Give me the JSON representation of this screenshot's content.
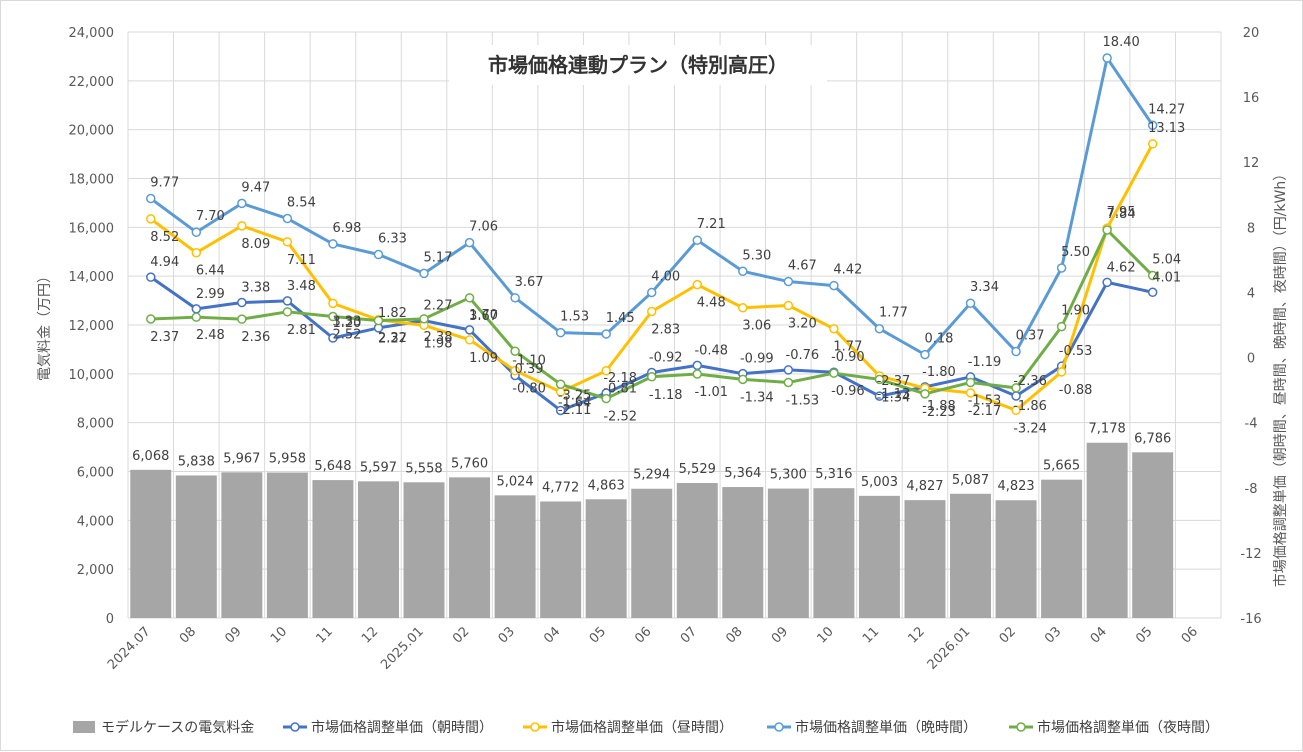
{
  "chart_data": {
    "type": "bar+line",
    "title": "市場価格連動プラン（特別高圧）",
    "y_left_label": "電気料金（万円）",
    "y_right_label": "市場価格調整単価（朝時間、昼時間、晩時間、夜時間）（円/kWh）",
    "ylim_left": [
      0,
      24000
    ],
    "ylim_right": [
      -16,
      20
    ],
    "y_left_ticks": [
      "0",
      "2,000",
      "4,000",
      "6,000",
      "8,000",
      "10,000",
      "12,000",
      "14,000",
      "16,000",
      "18,000",
      "20,000",
      "22,000",
      "24,000"
    ],
    "y_right_ticks": [
      "-16",
      "-12",
      "-8",
      "-4",
      "0",
      "4",
      "8",
      "12",
      "16",
      "20"
    ],
    "categories": [
      "2024.07",
      "08",
      "09",
      "10",
      "11",
      "12",
      "2025.01",
      "02",
      "03",
      "04",
      "05",
      "06",
      "07",
      "08",
      "09",
      "10",
      "11",
      "12",
      "2026.01",
      "02",
      "03",
      "04",
      "05",
      "06"
    ],
    "bars": {
      "name": "モデルケースの電気料金",
      "color": "#a6a6a6",
      "values": [
        6068,
        5838,
        5967,
        5958,
        5648,
        5597,
        5558,
        5760,
        5024,
        4772,
        4863,
        5294,
        5529,
        5364,
        5300,
        5316,
        5003,
        4827,
        5087,
        4823,
        5665,
        7178,
        6786,
        null
      ],
      "labels": [
        "6,068",
        "5,838",
        "5,967",
        "5,958",
        "5,648",
        "5,597",
        "5,558",
        "5,760",
        "5,024",
        "4,772",
        "4,863",
        "5,294",
        "5,529",
        "5,364",
        "5,300",
        "5,316",
        "5,003",
        "4,827",
        "5,087",
        "4,823",
        "5,665",
        "7,178",
        "6,786",
        ""
      ]
    },
    "series": [
      {
        "name": "市場価格調整単価（朝時間）",
        "color": "#4472c4",
        "values": [
          4.94,
          2.99,
          3.38,
          3.48,
          1.2,
          1.82,
          2.27,
          1.7,
          -1.1,
          -3.25,
          -2.18,
          -0.92,
          -0.48,
          -0.99,
          -0.76,
          -0.9,
          -2.37,
          -1.8,
          -1.19,
          -2.36,
          -0.53,
          4.62,
          4.01,
          null
        ],
        "labels": [
          "4.94",
          "2.99",
          "3.38",
          "3.48",
          "1.20",
          "1.82",
          "2.27",
          "1.70",
          "-1.10",
          "-3.25",
          "-2.18",
          "-0.92",
          "-0.48",
          "-0.99",
          "-0.76",
          "-0.90",
          "-2.37",
          "-1.80",
          "-1.19",
          "-2.36",
          "-0.53",
          "4.62",
          "4.01",
          ""
        ]
      },
      {
        "name": "市場価格調整単価（昼時間）",
        "color": "#ffc000",
        "values": [
          8.52,
          6.44,
          8.09,
          7.11,
          3.33,
          2.32,
          1.98,
          1.09,
          -0.8,
          -2.11,
          -0.81,
          2.83,
          4.48,
          3.06,
          3.2,
          1.77,
          -1.13,
          -1.88,
          -2.17,
          -3.24,
          -0.88,
          7.95,
          13.13,
          null
        ],
        "labels": [
          "8.52",
          "6.44",
          "8.09",
          "7.11",
          "3.33",
          "2.32",
          "1.98",
          "1.09",
          "-0.80",
          "-2.11",
          "-0.81",
          "2.83",
          "4.48",
          "3.06",
          "3.20",
          "1.77",
          "-1.13",
          "-1.88",
          "-2.17",
          "-3.24",
          "-0.88",
          "7.95",
          "13.13",
          ""
        ]
      },
      {
        "name": "市場価格調整単価（晩時間）",
        "color": "#5b9bd5",
        "values": [
          9.77,
          7.7,
          9.47,
          8.54,
          6.98,
          6.33,
          5.17,
          7.06,
          3.67,
          1.53,
          1.45,
          4.0,
          7.21,
          5.3,
          4.67,
          4.42,
          1.77,
          0.18,
          3.34,
          0.37,
          5.5,
          18.4,
          14.27,
          null
        ],
        "labels": [
          "9.77",
          "7.70",
          "9.47",
          "8.54",
          "6.98",
          "6.33",
          "5.17",
          "7.06",
          "3.67",
          "1.53",
          "1.45",
          "4.00",
          "7.21",
          "5.30",
          "4.67",
          "4.42",
          "1.77",
          "0.18",
          "3.34",
          "0.37",
          "5.50",
          "18.40",
          "14.27",
          ""
        ]
      },
      {
        "name": "市場価格調整単価（夜時間）",
        "color": "#70ad47",
        "values": [
          2.37,
          2.48,
          2.36,
          2.81,
          2.52,
          2.27,
          2.38,
          3.67,
          0.39,
          -1.64,
          -2.52,
          -1.18,
          -1.01,
          -1.34,
          -1.53,
          -0.96,
          -1.34,
          -2.23,
          -1.53,
          -1.86,
          1.9,
          7.84,
          5.04,
          null
        ],
        "labels": [
          "2.37",
          "2.48",
          "2.36",
          "2.81",
          "2.52",
          "2.27",
          "2.38",
          "3.67",
          "0.39",
          "-1.64",
          "-2.52",
          "-1.18",
          "-1.01",
          "-1.34",
          "-1.53",
          "-0.96",
          "-1.34",
          "-2.23",
          "-1.53",
          "-1.86",
          "1.90",
          "7.84",
          "5.04",
          ""
        ]
      }
    ],
    "grid": "vertical-and-horizontal",
    "legend": "bottom"
  }
}
